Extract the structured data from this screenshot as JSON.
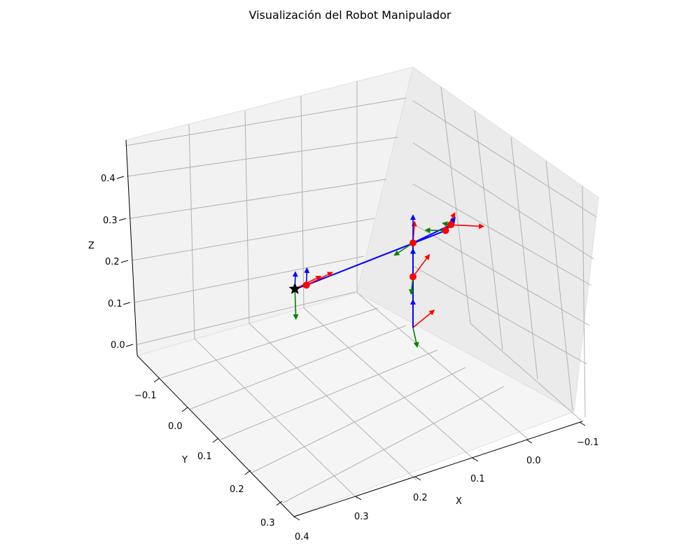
{
  "chart_data": {
    "type": "3d-line",
    "title": "Visualización del Robot Manipulador",
    "xlabel": "X",
    "ylabel": "Y",
    "zlabel": "Z",
    "x_ticks": [
      "−0.1",
      "0.0",
      "0.1",
      "0.2",
      "0.3",
      "0.4"
    ],
    "y_ticks": [
      "−0.1",
      "0.0",
      "0.1",
      "0.2",
      "0.3"
    ],
    "z_ticks": [
      "0.0",
      "0.1",
      "0.2",
      "0.3",
      "0.4"
    ],
    "grid": true,
    "series": [
      {
        "points": [
          {
            "x": 0.0,
            "y": 0.0,
            "z": 0.0
          },
          {
            "x": 0.0,
            "y": 0.0,
            "z": 0.12
          },
          {
            "x": 0.0,
            "y": 0.0,
            "z": 0.2
          },
          {
            "x": 0.0,
            "y": -0.12,
            "z": 0.33
          },
          {
            "x": 0.02,
            "y": -0.14,
            "z": 0.34
          },
          {
            "x": 0.25,
            "y": -0.12,
            "z": 0.3
          },
          {
            "x": 0.27,
            "y": -0.12,
            "z": 0.3
          }
        ]
      }
    ],
    "end_effector_marker": "black-star",
    "joint_marker_color": "#ff0000",
    "axis_colors": {
      "x": "#ff0000",
      "y": "#008000",
      "z": "#0000ff"
    }
  }
}
